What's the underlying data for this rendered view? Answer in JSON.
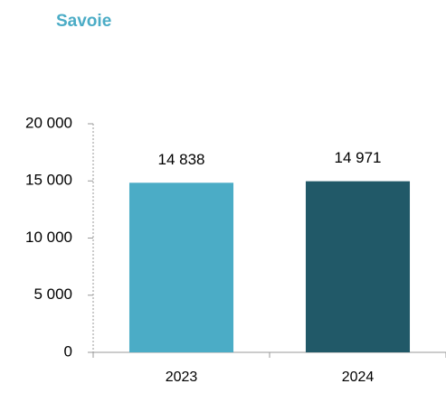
{
  "chart_data": {
    "type": "bar",
    "title": "Savoie",
    "categories": [
      "2023",
      "2024"
    ],
    "values": [
      14838,
      14971
    ],
    "value_labels": [
      "14 838",
      "14 971"
    ],
    "colors": [
      "#4bacc6",
      "#215968"
    ],
    "ylim": [
      0,
      20000
    ],
    "yticks": [
      {
        "value": 0,
        "label": "0"
      },
      {
        "value": 5000,
        "label": "5 000"
      },
      {
        "value": 10000,
        "label": "10 000"
      },
      {
        "value": 15000,
        "label": "15 000"
      },
      {
        "value": 20000,
        "label": "20 000"
      }
    ],
    "grid": false
  }
}
